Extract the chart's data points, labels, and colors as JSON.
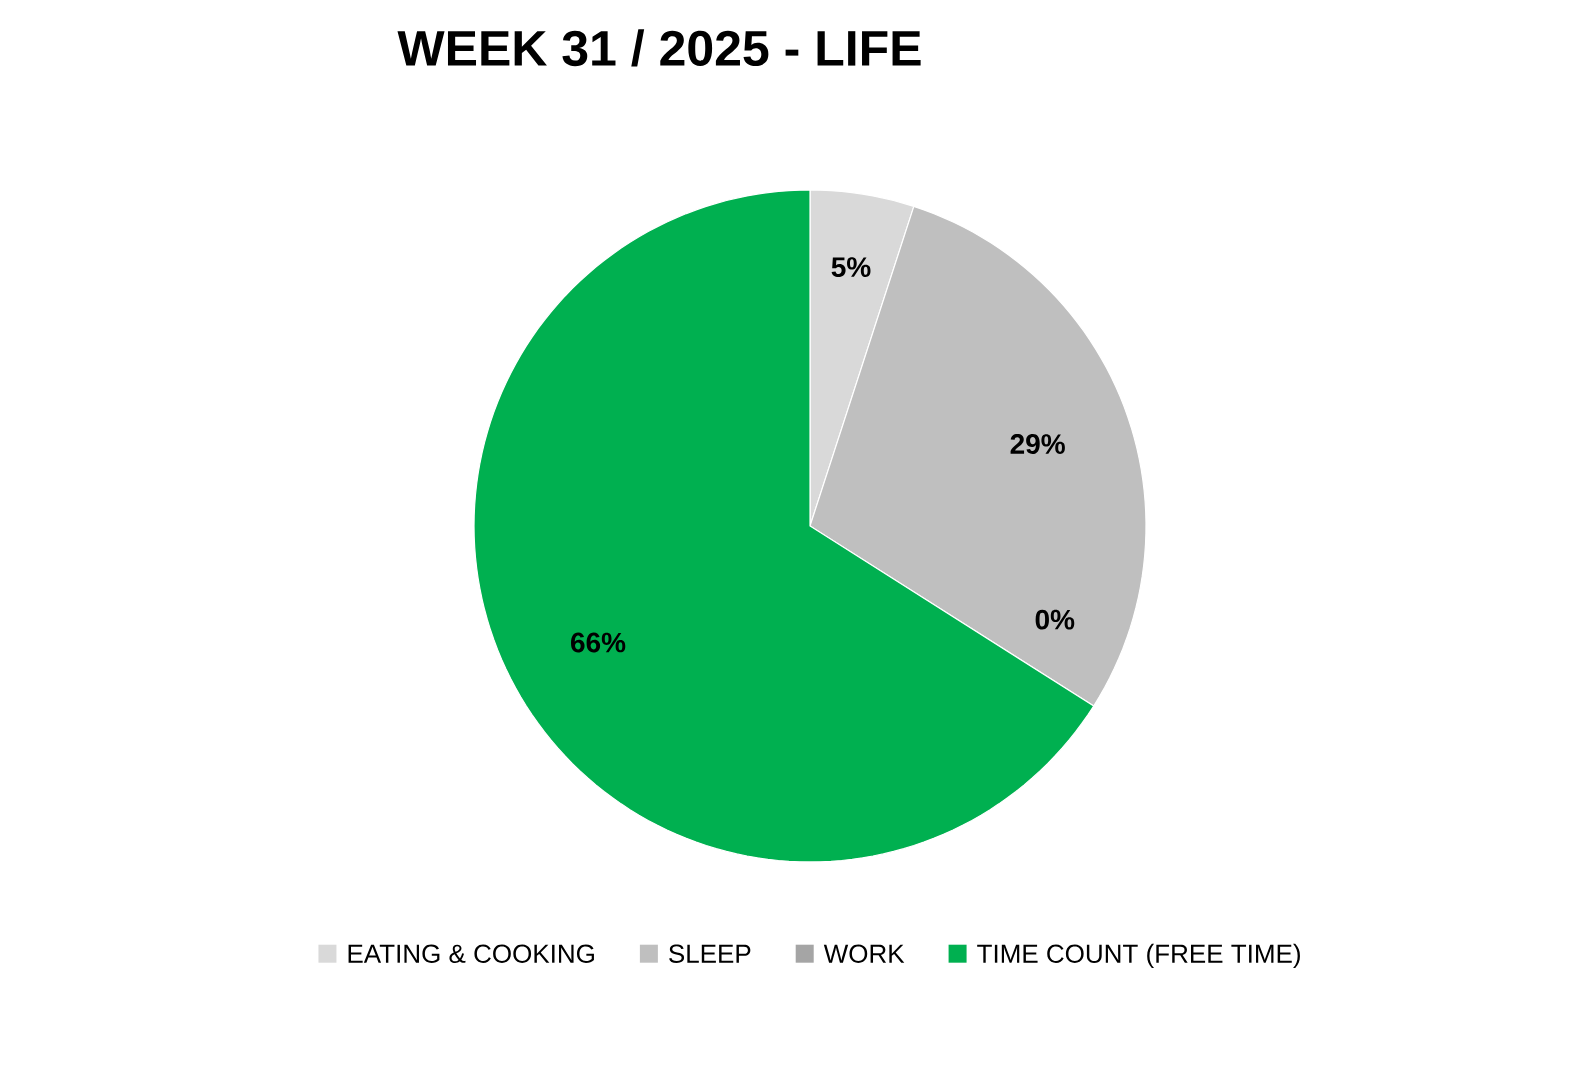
{
  "chart_data": {
    "type": "pie",
    "title": "WEEK 31 / 2025 - LIFE",
    "categories": [
      "EATING & COOKING",
      "SLEEP",
      "WORK",
      "TIME COUNT (FREE TIME)"
    ],
    "values": [
      5,
      29,
      0,
      66
    ],
    "colors": [
      "#d9d9d9",
      "#bfbfbf",
      "#a5a5a5",
      "#00b050"
    ],
    "value_labels": [
      "5%",
      "29%",
      "0%",
      "66%"
    ],
    "legend": "bottom"
  }
}
